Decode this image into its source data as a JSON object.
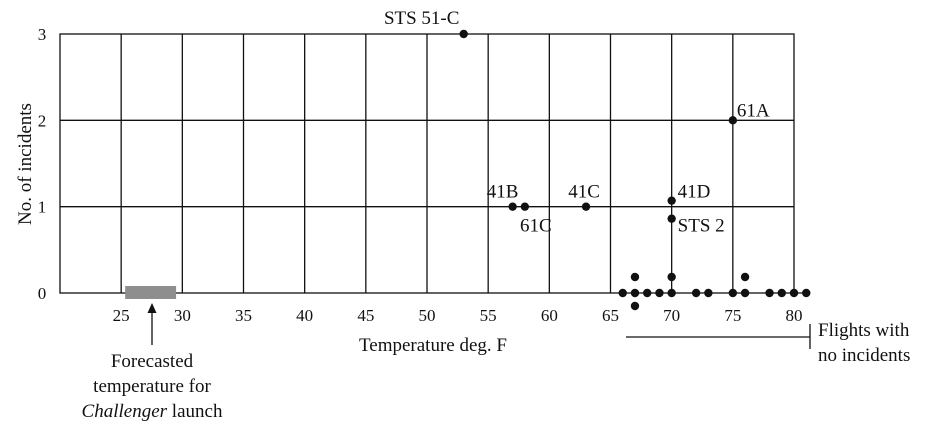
{
  "chart_data": {
    "type": "scatter",
    "xlabel": "Temperature deg. F",
    "ylabel": "No. of incidents",
    "xlim": [
      20,
      81
    ],
    "ylim": [
      0,
      3
    ],
    "x_ticks": [
      25,
      30,
      35,
      40,
      45,
      50,
      55,
      60,
      65,
      70,
      75,
      80
    ],
    "y_ticks": [
      0,
      1,
      2,
      3
    ],
    "grid": true,
    "incident_points": [
      {
        "label": "STS 51-C",
        "x": 53,
        "y": 3
      },
      {
        "label": "61A",
        "x": 75,
        "y": 2
      },
      {
        "label": "41B",
        "x": 57,
        "y": 1
      },
      {
        "label": "61C",
        "x": 58,
        "y": 1
      },
      {
        "label": "41C",
        "x": 63,
        "y": 1
      },
      {
        "label": "41D",
        "x": 70,
        "y": 1
      },
      {
        "label": "STS 2",
        "x": 70,
        "y": 1
      }
    ],
    "no_incident_points": [
      {
        "x": 66,
        "y": 0
      },
      {
        "x": 67,
        "y": 0
      },
      {
        "x": 67,
        "y": 0
      },
      {
        "x": 67,
        "y": 0
      },
      {
        "x": 68,
        "y": 0
      },
      {
        "x": 69,
        "y": 0
      },
      {
        "x": 70,
        "y": 0
      },
      {
        "x": 70,
        "y": 0
      },
      {
        "x": 72,
        "y": 0
      },
      {
        "x": 73,
        "y": 0
      },
      {
        "x": 75,
        "y": 0
      },
      {
        "x": 76,
        "y": 0
      },
      {
        "x": 76,
        "y": 0
      },
      {
        "x": 78,
        "y": 0
      },
      {
        "x": 79,
        "y": 0
      },
      {
        "x": 80,
        "y": 0
      },
      {
        "x": 81,
        "y": 0
      }
    ],
    "forecast_range": [
      25,
      29
    ],
    "annotations": {
      "forecast_line1": "Forecasted",
      "forecast_line2": "temperature for",
      "forecast_line3_italic": "Challenger",
      "forecast_line3_rest": " launch",
      "no_incidents_line1": "Flights with",
      "no_incidents_line2": "no incidents"
    }
  }
}
